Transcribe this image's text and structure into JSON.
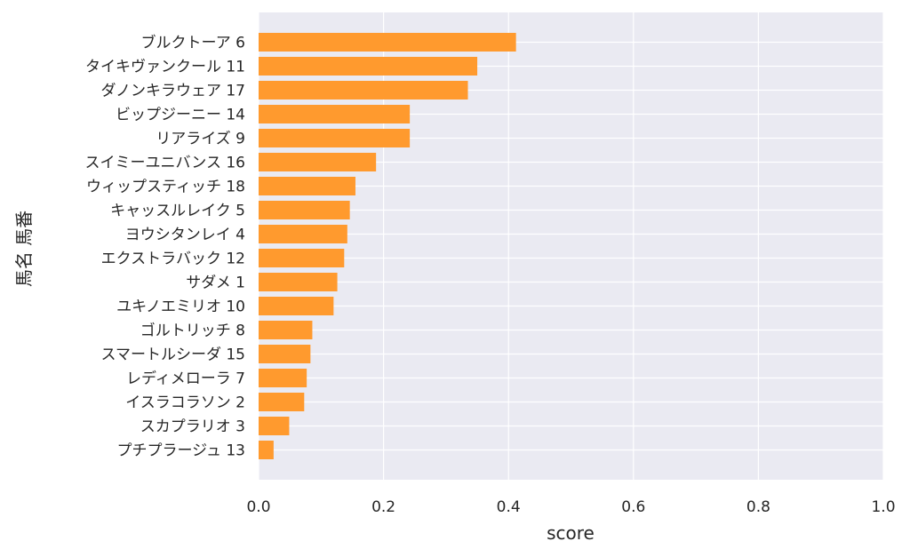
{
  "chart_data": {
    "type": "bar",
    "orientation": "horizontal",
    "xlabel": "score",
    "ylabel": "馬名 馬番",
    "xlim": [
      0.0,
      1.0
    ],
    "x_ticks": [
      "0.0",
      "0.2",
      "0.4",
      "0.6",
      "0.8",
      "1.0"
    ],
    "grid": true,
    "bar_color": "#ff9a2e",
    "background_color": "#eaeaf2",
    "grid_color": "#ffffff",
    "categories": [
      "ブルクトーア 6",
      "タイキヴァンクール 11",
      "ダノンキラウェア 17",
      "ビップジーニー 14",
      "リアライズ 9",
      "スイミーユニバンス 16",
      "ウィップスティッチ 18",
      "キャッスルレイク 5",
      "ヨウシタンレイ 4",
      "エクストラバック 12",
      "サダメ 1",
      "ユキノエミリオ 10",
      "ゴルトリッチ 8",
      "スマートルシーダ 15",
      "レディメローラ 7",
      "イスラコラソン 2",
      "スカプラリオ 3",
      "プチプラージュ 13"
    ],
    "values": [
      0.412,
      0.35,
      0.335,
      0.242,
      0.242,
      0.188,
      0.155,
      0.146,
      0.142,
      0.137,
      0.126,
      0.12,
      0.086,
      0.083,
      0.077,
      0.073,
      0.049,
      0.024
    ]
  }
}
